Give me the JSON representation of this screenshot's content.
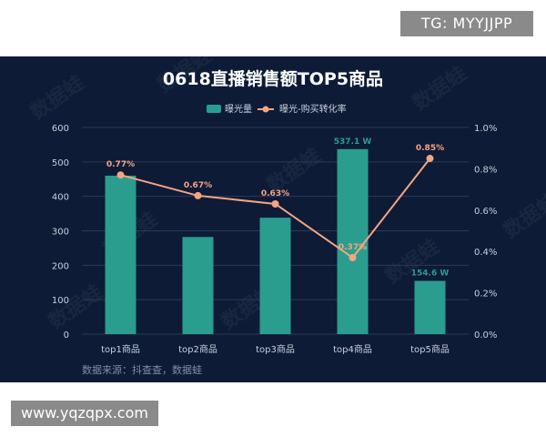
{
  "badges": {
    "top_right": "TG: MYYJJPP",
    "bottom_left": "www.yqzqpx.com"
  },
  "watermark_text": "数据蛙",
  "colors": {
    "background": "#0d1b36",
    "bar": "#2a9d8f",
    "line": "#f4a582",
    "axis_text": "#c8d0dc",
    "grid": "#2a3a58"
  },
  "chart_data": {
    "type": "bar",
    "title": "0618直播销售额TOP5商品",
    "source_note": "数据来源：抖查查，数据蛙",
    "categories": [
      "top1商品",
      "top2商品",
      "top3商品",
      "top4商品",
      "top5商品"
    ],
    "series": [
      {
        "name": "曝光量",
        "type": "bar",
        "axis": "left",
        "values": [
          460,
          282,
          338,
          537.1,
          154.6
        ],
        "data_labels": [
          "",
          "",
          "",
          "537.1 W",
          "154.6 W"
        ]
      },
      {
        "name": "曝光-购买转化率",
        "type": "line",
        "axis": "right",
        "values": [
          0.77,
          0.67,
          0.63,
          0.37,
          0.85
        ],
        "data_labels": [
          "0.77%",
          "0.67%",
          "0.63%",
          "0.37%",
          "0.85%"
        ]
      }
    ],
    "y_left": {
      "min": 0,
      "max": 600,
      "ticks": [
        "0",
        "100",
        "200",
        "300",
        "400",
        "500",
        "600"
      ]
    },
    "y_right": {
      "min": 0,
      "max": 1.0,
      "ticks": [
        "0.0%",
        "0.2%",
        "0.4%",
        "0.6%",
        "0.8%",
        "1.0%"
      ]
    },
    "legend_position": "top-center",
    "grid": true
  }
}
